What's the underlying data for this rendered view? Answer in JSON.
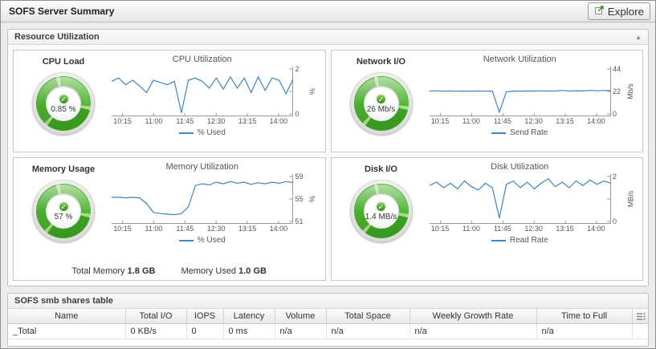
{
  "window": {
    "title": "SOFS Server Summary"
  },
  "toolbar": {
    "explore_label": "Explore"
  },
  "icons": {
    "status_ok": "✓",
    "collapse": "▲"
  },
  "colors": {
    "accent_blue": "#3d85c6",
    "gauge_green": "#3da322",
    "axis_gray": "#999999"
  },
  "resource_panel": {
    "title": "Resource Utilization"
  },
  "quadrants": [
    {
      "gauge_title": "CPU Load",
      "gauge_value": "0.85 %"
    },
    {
      "gauge_title": "Network I/O",
      "gauge_value": "26 Mb/s"
    },
    {
      "gauge_title": "Memory Usage",
      "gauge_value": "57 %",
      "footer": {
        "total_label": "Total Memory",
        "total_value": "1.8 GB",
        "used_label": "Memory Used",
        "used_value": "1.0 GB"
      }
    },
    {
      "gauge_title": "Disk I/O",
      "gauge_value": "1.4 MB/s"
    }
  ],
  "chart_data": [
    {
      "type": "line",
      "title": "CPU Utilization",
      "ylabel": "%",
      "ylim": [
        0,
        2
      ],
      "yticks": [
        {
          "value": 2,
          "label": "2"
        },
        {
          "value": 1,
          "label": ""
        },
        {
          "value": 0,
          "label": "0"
        }
      ],
      "xticks": [
        "10:15",
        "11:00",
        "11:45",
        "12:30",
        "13:15",
        "14:00"
      ],
      "legend_position": "bottom",
      "grid": false,
      "series": [
        {
          "name": "% Used",
          "values": [
            1.45,
            1.6,
            1.3,
            1.5,
            1.25,
            0.95,
            1.5,
            1.4,
            1.3,
            1.45,
            0.05,
            1.5,
            1.6,
            1.45,
            1.15,
            1.6,
            1.1,
            1.65,
            1.15,
            1.6,
            0.95,
            1.65,
            1.05,
            1.6,
            1.5,
            0.9,
            1.55
          ]
        }
      ]
    },
    {
      "type": "line",
      "title": "Network Utilization",
      "ylabel": "Mb/s",
      "ylim": [
        0,
        44
      ],
      "yticks": [
        {
          "value": 44,
          "label": "44"
        },
        {
          "value": 22,
          "label": "22"
        },
        {
          "value": 0,
          "label": "0"
        }
      ],
      "xticks": [
        "10:15",
        "11:00",
        "11:45",
        "12:30",
        "13:15",
        "14:00"
      ],
      "legend_position": "bottom",
      "grid": false,
      "series": [
        {
          "name": "Send Rate",
          "values": [
            22.4,
            22.6,
            22.3,
            22.5,
            22.2,
            22.4,
            22.3,
            22.5,
            22.2,
            22.4,
            1.8,
            21.6,
            22.4,
            22.3,
            22.5,
            22.4,
            22.6,
            22.4,
            22.5,
            23.0,
            22.4,
            22.7,
            22.5,
            23.1,
            22.6,
            23.0,
            22.8
          ]
        }
      ]
    },
    {
      "type": "line",
      "title": "Memory Utilization",
      "ylabel": "%",
      "ylim": [
        51,
        59
      ],
      "yticks": [
        {
          "value": 59,
          "label": "59"
        },
        {
          "value": 55,
          "label": "55"
        },
        {
          "value": 51,
          "label": "51"
        }
      ],
      "xticks": [
        "10:15",
        "11:00",
        "11:45",
        "12:30",
        "13:15",
        "14:00"
      ],
      "legend_position": "bottom",
      "grid": false,
      "series": [
        {
          "name": "% Used",
          "values": [
            55.3,
            55.3,
            55.2,
            55.3,
            55.2,
            54.2,
            52.6,
            52.4,
            52.3,
            52.2,
            52.4,
            53.6,
            57.4,
            57.7,
            57.5,
            58.0,
            57.7,
            58.1,
            57.8,
            58.0,
            57.6,
            57.9,
            57.7,
            58.0,
            57.8,
            58.1,
            57.9
          ]
        }
      ]
    },
    {
      "type": "line",
      "title": "Disk Utilization",
      "ylabel": "MB/s",
      "ylim": [
        0,
        2
      ],
      "yticks": [
        {
          "value": 2,
          "label": "2"
        },
        {
          "value": 1,
          "label": ""
        },
        {
          "value": 0,
          "label": "0"
        }
      ],
      "xticks": [
        "10:15",
        "11:00",
        "11:45",
        "12:30",
        "13:15",
        "14:00"
      ],
      "legend_position": "bottom",
      "grid": false,
      "series": [
        {
          "name": "Read Rate",
          "values": [
            1.6,
            1.75,
            1.5,
            1.7,
            1.45,
            1.8,
            1.55,
            1.4,
            1.7,
            1.5,
            0.15,
            1.65,
            1.8,
            1.5,
            1.75,
            1.45,
            1.7,
            1.9,
            1.55,
            1.75,
            1.5,
            1.8,
            1.6,
            1.85,
            1.65,
            1.8,
            1.7
          ]
        }
      ]
    }
  ],
  "table_panel": {
    "title": "SOFS smb shares table",
    "columns": [
      "Name",
      "Total I/O",
      "IOPS",
      "Latency",
      "Volume",
      "Total Space",
      "Weekly Growth Rate",
      "Time to Full"
    ],
    "rows": [
      [
        "_Total",
        "0 KB/s",
        "0",
        "0 ms",
        "n/a",
        "n/a",
        "n/a",
        "n/a"
      ]
    ]
  }
}
